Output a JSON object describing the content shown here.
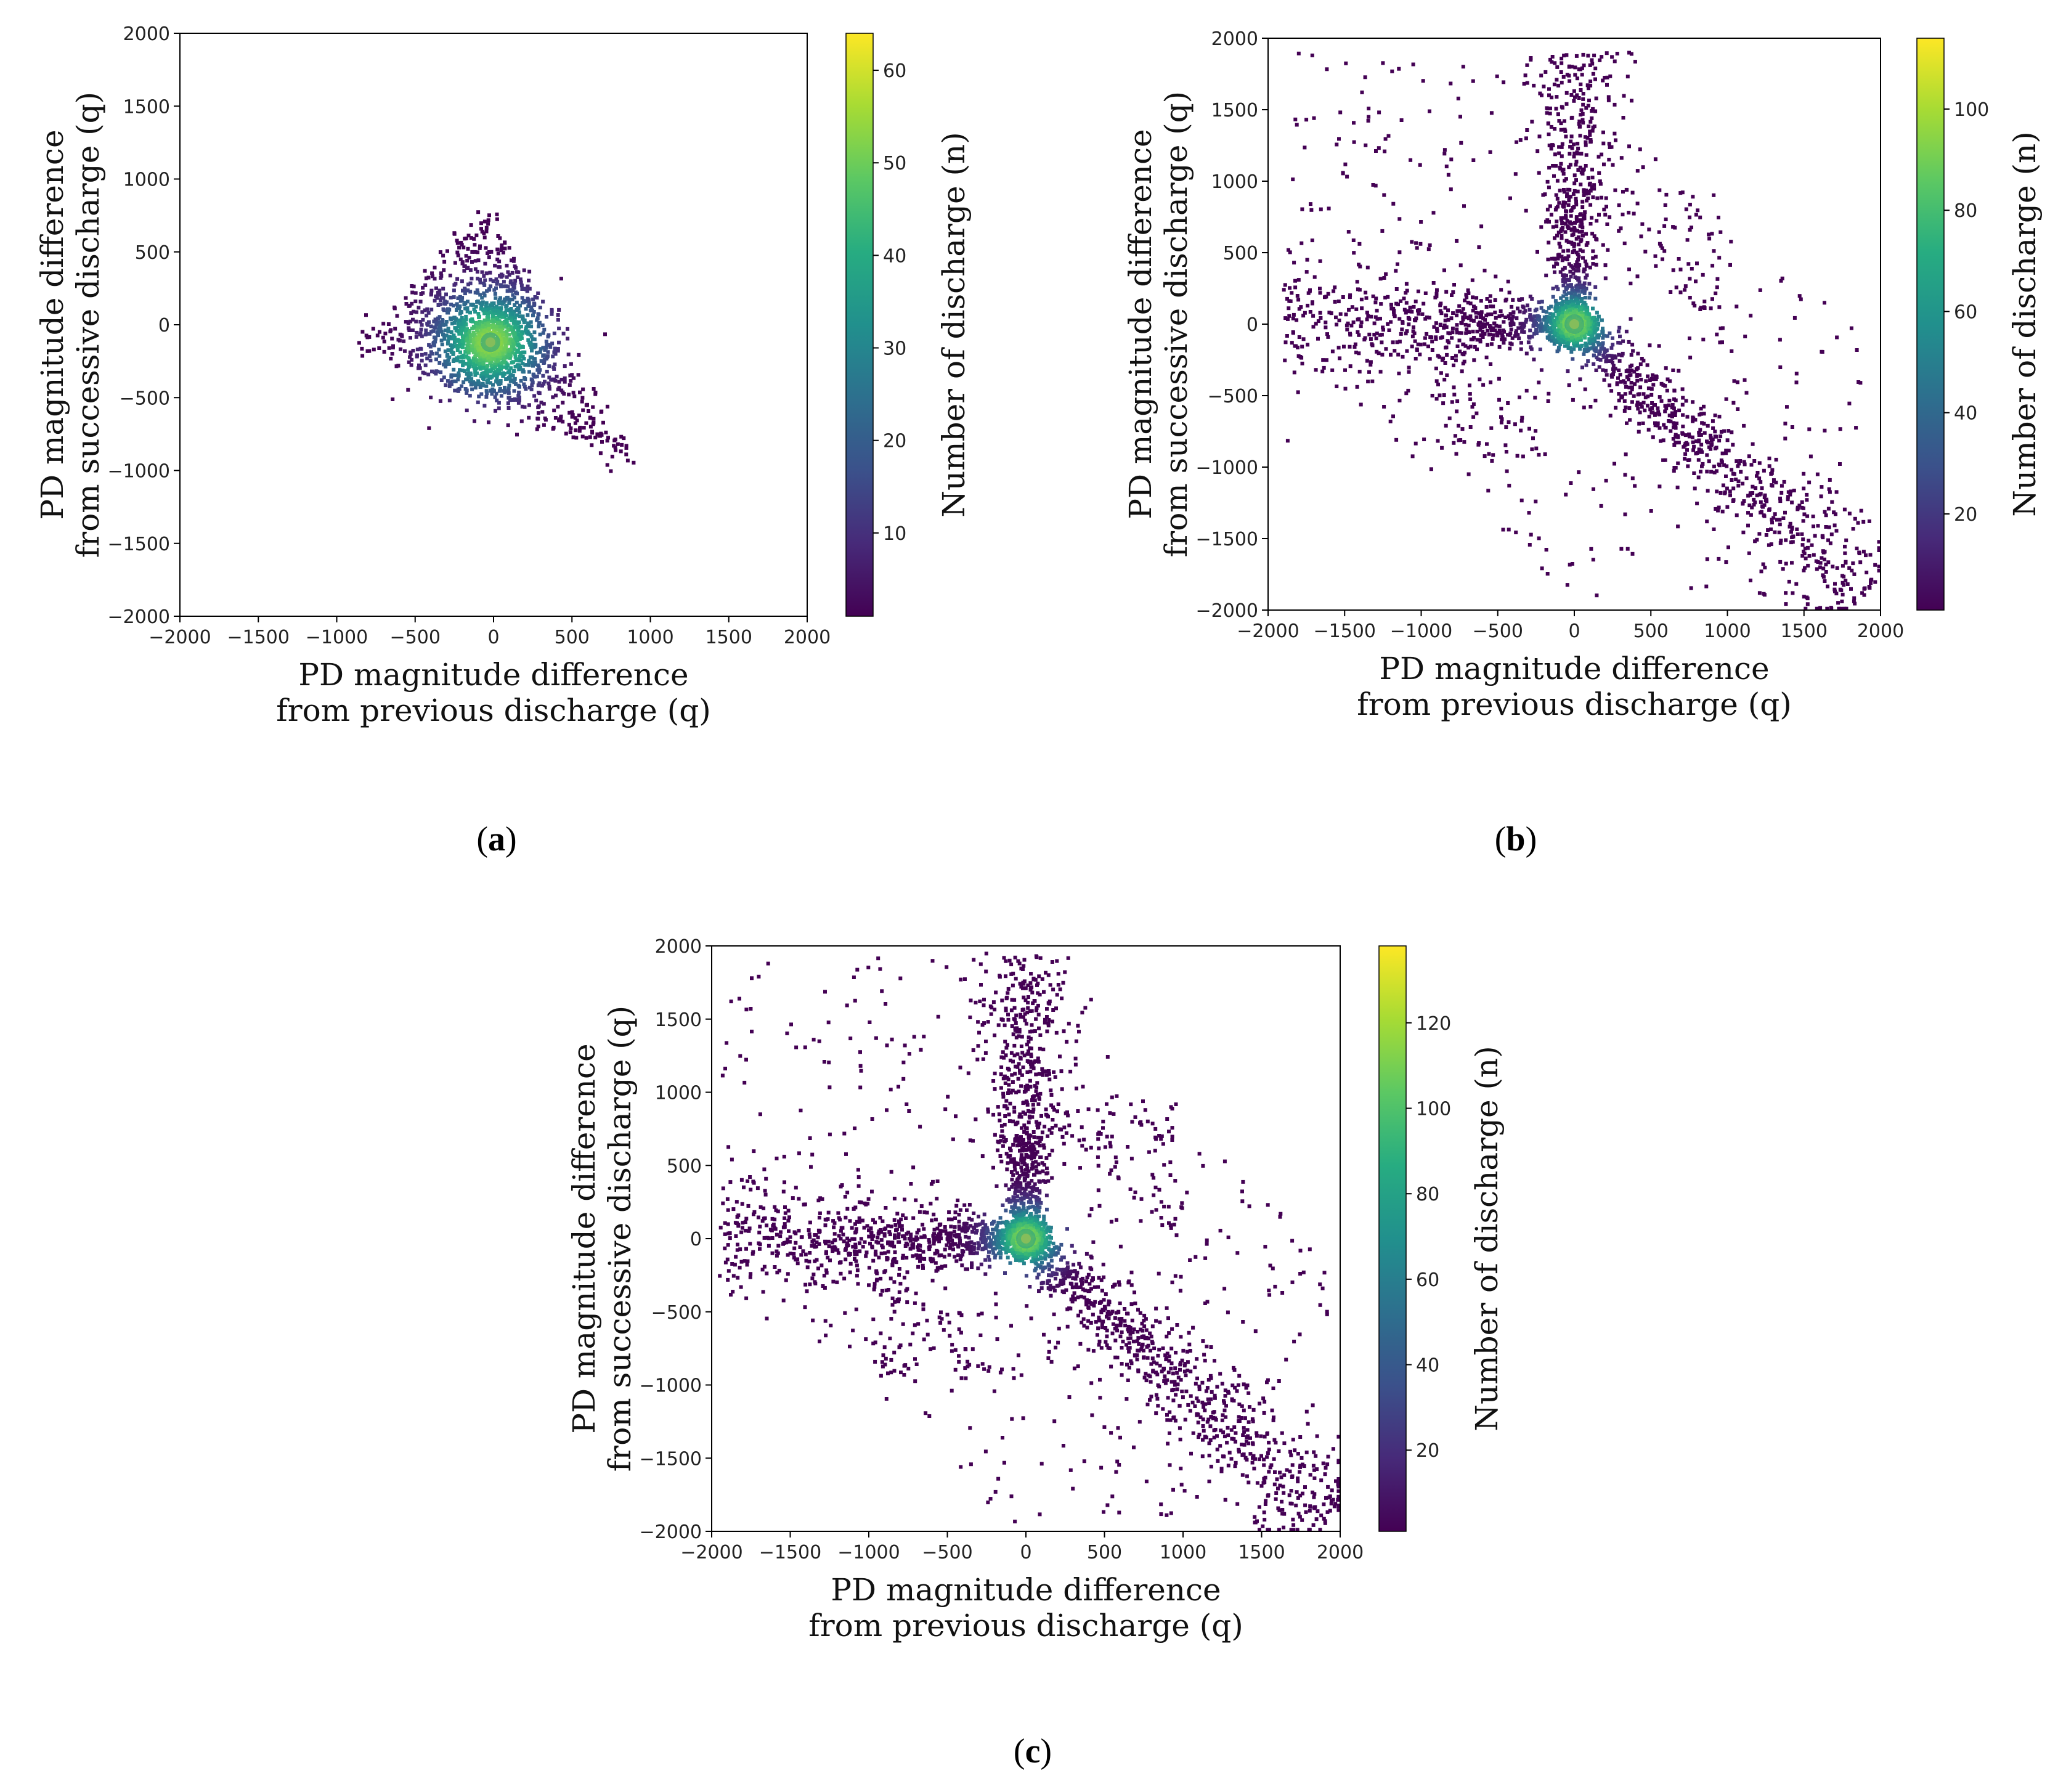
{
  "chart_data": [
    {
      "type": "scatter",
      "subtype": "2d-density",
      "panel": "a",
      "caption_open": "(",
      "caption_letter": "a",
      "caption_close": ")",
      "xlabel": "PD magnitude difference",
      "xlabel_line2": "from previous discharge (q)",
      "ylabel": "PD magnitude difference",
      "ylabel_line2": "from successive discharge (q)",
      "xlim": [
        -2000,
        2000
      ],
      "ylim": [
        -2000,
        2000
      ],
      "xticks": [
        -2000,
        -1500,
        -1000,
        -500,
        0,
        500,
        1000,
        1500,
        2000
      ],
      "yticks": [
        -2000,
        -1500,
        -1000,
        -500,
        0,
        500,
        1000,
        1500,
        2000
      ],
      "xticklabels": [
        "−2000",
        "−1500",
        "−1000",
        "−500",
        "0",
        "500",
        "1000",
        "1500",
        "2000"
      ],
      "yticklabels": [
        "−2000",
        "−1500",
        "−1000",
        "−500",
        "0",
        "500",
        "1000",
        "1500",
        "2000"
      ],
      "colorbar": {
        "label": "Number of discharge (n)",
        "range": [
          1,
          64
        ],
        "ticks": [
          10,
          20,
          30,
          40,
          50,
          60
        ],
        "ticklabels": [
          "10",
          "20",
          "30",
          "40",
          "50",
          "60"
        ],
        "colormap": "viridis"
      },
      "density_center": [
        -20,
        -120
      ],
      "shape": {
        "kind": "triangle",
        "vertices": [
          [
            -900,
            -120
          ],
          [
            -30,
            760
          ],
          [
            880,
            -960
          ]
        ],
        "arm_spread": 420
      },
      "point_count": 1800,
      "peak_count": 64
    },
    {
      "type": "scatter",
      "subtype": "2d-density",
      "panel": "b",
      "caption_open": "(",
      "caption_letter": "b",
      "caption_close": ")",
      "xlabel": "PD magnitude difference",
      "xlabel_line2": "from previous discharge (q)",
      "ylabel": "PD magnitude difference",
      "ylabel_line2": "from successive discharge (q)",
      "xlim": [
        -2000,
        2000
      ],
      "ylim": [
        -2000,
        2000
      ],
      "xticks": [
        -2000,
        -1500,
        -1000,
        -500,
        0,
        500,
        1000,
        1500,
        2000
      ],
      "yticks": [
        -2000,
        -1500,
        -1000,
        -500,
        0,
        500,
        1000,
        1500,
        2000
      ],
      "xticklabels": [
        "−2000",
        "−1500",
        "−1000",
        "−500",
        "0",
        "500",
        "1000",
        "1500",
        "2000"
      ],
      "yticklabels": [
        "−2000",
        "−1500",
        "−1000",
        "−500",
        "0",
        "500",
        "1000",
        "1500",
        "2000"
      ],
      "colorbar": {
        "label": "Number of discharge (n)",
        "range": [
          1,
          114
        ],
        "ticks": [
          20,
          40,
          60,
          80,
          100
        ],
        "ticklabels": [
          "20",
          "40",
          "60",
          "80",
          "100"
        ],
        "colormap": "viridis"
      },
      "density_center": [
        0,
        0
      ],
      "shape": {
        "kind": "three-arm",
        "arms": [
          [
            -1900,
            0
          ],
          [
            0,
            1900
          ],
          [
            1900,
            -1900
          ]
        ],
        "extent": 1900
      },
      "point_count": 3200,
      "peak_count": 114
    },
    {
      "type": "scatter",
      "subtype": "2d-density",
      "panel": "c",
      "caption_open": "(",
      "caption_letter": "c",
      "caption_close": ")",
      "xlabel": "PD magnitude difference",
      "xlabel_line2": "from previous discharge (q)",
      "ylabel": "PD magnitude difference",
      "ylabel_line2": "from successive discharge (q)",
      "xlim": [
        -2000,
        2000
      ],
      "ylim": [
        -2000,
        2000
      ],
      "xticks": [
        -2000,
        -1500,
        -1000,
        -500,
        0,
        500,
        1000,
        1500,
        2000
      ],
      "yticks": [
        -2000,
        -1500,
        -1000,
        -500,
        0,
        500,
        1000,
        1500,
        2000
      ],
      "xticklabels": [
        "−2000",
        "−1500",
        "−1000",
        "−500",
        "0",
        "500",
        "1000",
        "1500",
        "2000"
      ],
      "yticklabels": [
        "−2000",
        "−1500",
        "−1000",
        "−500",
        "0",
        "500",
        "1000",
        "1500",
        "2000"
      ],
      "colorbar": {
        "label": "Number of discharge (n)",
        "range": [
          1,
          138
        ],
        "ticks": [
          20,
          40,
          60,
          80,
          100,
          120
        ],
        "ticklabels": [
          "20",
          "40",
          "60",
          "80",
          "100",
          "120"
        ],
        "colormap": "viridis"
      },
      "density_center": [
        0,
        0
      ],
      "shape": {
        "kind": "three-arm",
        "arms": [
          [
            -2000,
            0
          ],
          [
            0,
            2000
          ],
          [
            2000,
            -2000
          ]
        ],
        "extent": 1950
      },
      "point_count": 3800,
      "peak_count": 138
    }
  ]
}
